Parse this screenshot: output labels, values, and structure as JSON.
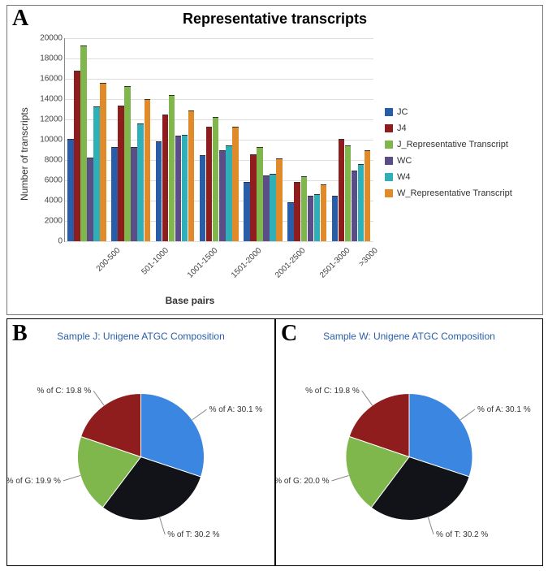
{
  "panel_labels": {
    "A": "A",
    "B": "B",
    "C": "C"
  },
  "bar_chart": {
    "type": "bar",
    "title": "Representative transcripts",
    "title_fontsize": 18,
    "ylabel": "Number of transcripts",
    "xlabel": "Base pairs",
    "ymin": 0,
    "ymax": 20000,
    "ytick_step": 2000,
    "grid_color": "#dddddd",
    "categories": [
      "200-500",
      "501-1000",
      "1001-1500",
      "1501-2000",
      "2001-2500",
      "2501-3000",
      ">3000"
    ],
    "series": [
      {
        "name": "JC",
        "color": "#2a5da8",
        "values": [
          10000,
          9200,
          9800,
          8400,
          5800,
          3800,
          4400
        ]
      },
      {
        "name": "J4",
        "color": "#8f1d1d",
        "values": [
          16700,
          13300,
          12400,
          11200,
          8500,
          5800,
          10000
        ]
      },
      {
        "name": "J_Representative Transcript",
        "color": "#7fb74d",
        "values": [
          19200,
          15200,
          14300,
          12200,
          9200,
          6300,
          9400
        ]
      },
      {
        "name": "WC",
        "color": "#5a4d88",
        "values": [
          8200,
          9200,
          10300,
          8900,
          6400,
          4400,
          6900
        ]
      },
      {
        "name": "W4",
        "color": "#2fb0b8",
        "values": [
          13200,
          11500,
          10400,
          9400,
          6600,
          4600,
          7500
        ]
      },
      {
        "name": "W_Representative Transcript",
        "color": "#e08a2a",
        "values": [
          15500,
          13900,
          12800,
          11200,
          8100,
          5500,
          8900
        ]
      }
    ],
    "bar_border_color": "#333333",
    "background_color": "#ffffff"
  },
  "pie_b": {
    "type": "pie",
    "title": "Sample J: Unigene ATGC Composition",
    "background_color": "#ffffff",
    "slices": [
      {
        "label": "% of A: 30.1 %",
        "value": 30.1,
        "color": "#3a86e0"
      },
      {
        "label": "% of T: 30.2 %",
        "value": 30.2,
        "color": "#111319"
      },
      {
        "label": "% of G: 19.9 %",
        "value": 19.9,
        "color": "#7fb74d"
      },
      {
        "label": "% of C: 19.8 %",
        "value": 19.8,
        "color": "#8f1d1d"
      }
    ]
  },
  "pie_c": {
    "type": "pie",
    "title": "Sample W: Unigene ATGC Composition",
    "background_color": "#ffffff",
    "slices": [
      {
        "label": "% of A: 30.1 %",
        "value": 30.1,
        "color": "#3a86e0"
      },
      {
        "label": "% of T: 30.2 %",
        "value": 30.2,
        "color": "#111319"
      },
      {
        "label": "% of G: 20.0 %",
        "value": 20.0,
        "color": "#7fb74d"
      },
      {
        "label": "% of C: 19.8 %",
        "value": 19.8,
        "color": "#8f1d1d"
      }
    ]
  }
}
